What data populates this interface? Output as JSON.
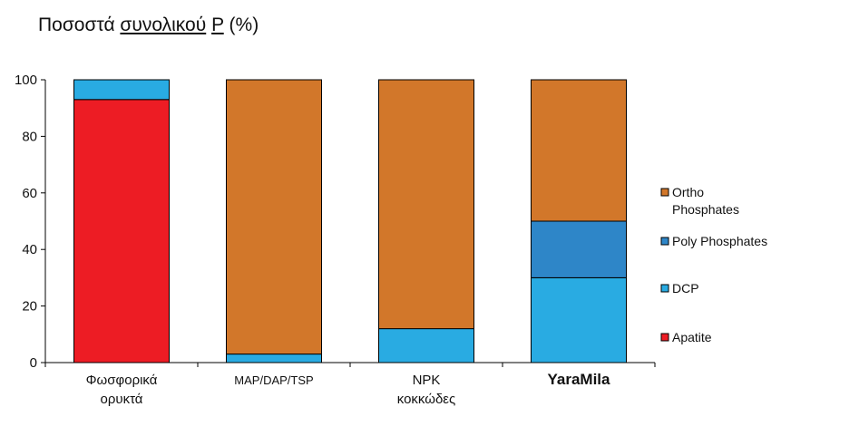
{
  "title": {
    "part1": "Ποσοστά ",
    "part2": "συνολικού",
    "part3": " ",
    "part4": "P",
    "part5": " (%)"
  },
  "chart_data": {
    "type": "bar",
    "stacked": true,
    "categories": [
      [
        "Φωσφορικά",
        "ορυκτά"
      ],
      [
        "MAP/DAP/TSP"
      ],
      [
        "NPK",
        "κοκκώδες"
      ],
      [
        "YaraMila"
      ]
    ],
    "series": [
      {
        "name": "Apatite",
        "color": "#ed1c24",
        "values": [
          93,
          0,
          0,
          0
        ]
      },
      {
        "name": "DCP",
        "color": "#29abe2",
        "values": [
          7,
          3,
          12,
          30
        ]
      },
      {
        "name": "Poly Phosphates",
        "color": "#2e86c8",
        "values": [
          0,
          0,
          0,
          20
        ]
      },
      {
        "name": "Ortho Phosphates",
        "color": "#d2772a",
        "values": [
          0,
          97,
          88,
          50
        ]
      }
    ],
    "legend_order": [
      "Ortho Phosphates",
      "Poly Phosphates",
      "DCP",
      "Apatite"
    ],
    "legend_position": "right",
    "yticks": [
      0,
      20,
      40,
      60,
      80,
      100
    ],
    "ylim": [
      0,
      100
    ],
    "grid": false
  }
}
